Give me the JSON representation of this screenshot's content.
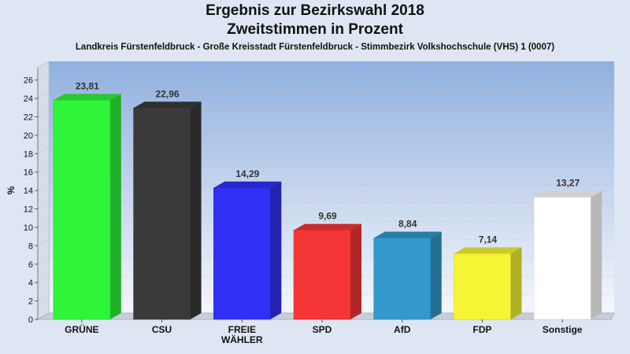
{
  "chart_data": {
    "type": "bar",
    "title": "Ergebnis zur Bezirkswahl 2018",
    "title2": "Zweitstimmen in Prozent",
    "subtitle": "Landkreis Fürstenfeldbruck - Große Kreisstadt Fürstenfeldbruck - Stimmbezirk Volkshochschule (VHS) 1 (0007)",
    "ylabel": "%",
    "ylim": [
      0,
      27
    ],
    "yticks": [
      0,
      2,
      4,
      6,
      8,
      10,
      12,
      14,
      16,
      18,
      20,
      22,
      24,
      26
    ],
    "categories": [
      [
        "GRÜNE"
      ],
      [
        "CSU"
      ],
      [
        "FREIE",
        "WÄHLER"
      ],
      [
        "SPD"
      ],
      [
        "AfD"
      ],
      [
        "FDP"
      ],
      [
        "Sonstige"
      ]
    ],
    "values": [
      23.81,
      22.96,
      14.29,
      9.69,
      8.84,
      7.14,
      13.27
    ],
    "value_labels": [
      "23,81",
      "22,96",
      "14,29",
      "9,69",
      "8,84",
      "7,14",
      "13,27"
    ],
    "colors": [
      "#2ef53a",
      "#3a3a3a",
      "#3030f5",
      "#f53636",
      "#3399cc",
      "#f5f536",
      "#ffffff"
    ],
    "grid": true
  }
}
